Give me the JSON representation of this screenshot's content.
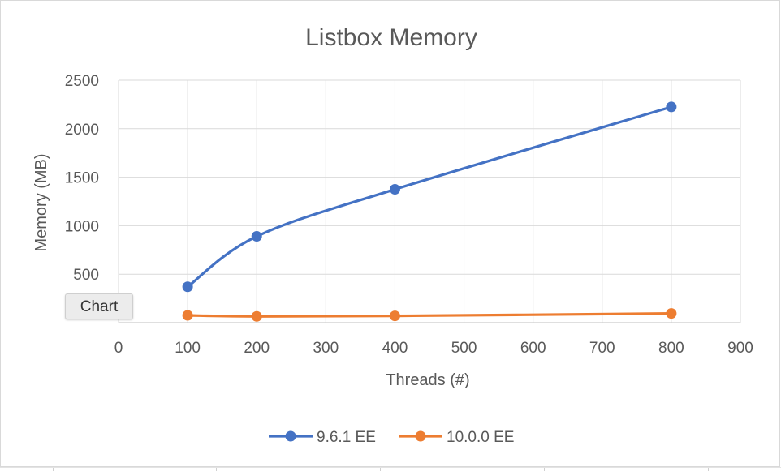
{
  "chart_data": {
    "type": "line",
    "title": "Listbox Memory",
    "xlabel": "Threads (#)",
    "ylabel": "Memory (MB)",
    "xlim": [
      0,
      900
    ],
    "ylim": [
      0,
      2500
    ],
    "x_ticks": [
      0,
      100,
      200,
      300,
      400,
      500,
      600,
      700,
      800,
      900
    ],
    "y_ticks": [
      500,
      1000,
      1500,
      2000,
      2500
    ],
    "grid": true,
    "smooth": true,
    "legend": "bottom",
    "x": [
      100,
      200,
      400,
      800
    ],
    "series": [
      {
        "name": "9.6.1 EE",
        "color": "#4472c4",
        "values": [
          370,
          890,
          1375,
          2225
        ]
      },
      {
        "name": "10.0.0 EE",
        "color": "#ed7d31",
        "values": [
          75,
          65,
          70,
          95
        ]
      }
    ]
  },
  "tooltip": {
    "label": "Chart"
  }
}
